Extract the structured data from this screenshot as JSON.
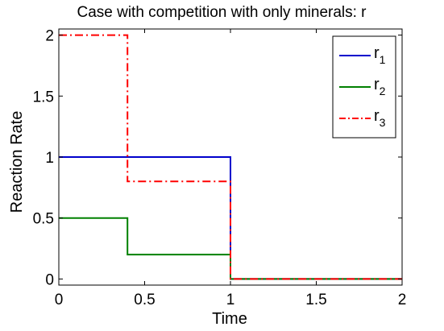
{
  "chart_data": {
    "type": "line",
    "title": "Case with competition with only minerals: r",
    "xlabel": "Time",
    "ylabel": "Reaction Rate",
    "xlim": [
      0,
      2
    ],
    "ylim": [
      -0.05,
      2.05
    ],
    "xticks": [
      0,
      0.5,
      1,
      1.5,
      2
    ],
    "xtick_labels": [
      "0",
      "0.5",
      "1",
      "1.5",
      "2"
    ],
    "yticks": [
      0,
      0.5,
      1,
      1.5,
      2
    ],
    "ytick_labels": [
      "0",
      "0.5",
      "1",
      "1.5",
      "2"
    ],
    "grid": false,
    "legend_position": "top-right",
    "series": [
      {
        "name": "r1",
        "label_main": "r",
        "label_sub": "1",
        "color": "#0000cc",
        "style": "solid",
        "x": [
          0,
          1,
          1,
          2
        ],
        "y": [
          1,
          1,
          0,
          0
        ]
      },
      {
        "name": "r2",
        "label_main": "r",
        "label_sub": "2",
        "color": "#008000",
        "style": "solid",
        "x": [
          0,
          0.4,
          0.4,
          1,
          1,
          2
        ],
        "y": [
          0.5,
          0.5,
          0.2,
          0.2,
          0,
          0
        ]
      },
      {
        "name": "r3",
        "label_main": "r",
        "label_sub": "3",
        "color": "#ff0000",
        "style": "dashdot",
        "x": [
          0,
          0.4,
          0.4,
          1,
          1,
          2
        ],
        "y": [
          2,
          2,
          0.8,
          0.8,
          0,
          0
        ]
      }
    ]
  }
}
